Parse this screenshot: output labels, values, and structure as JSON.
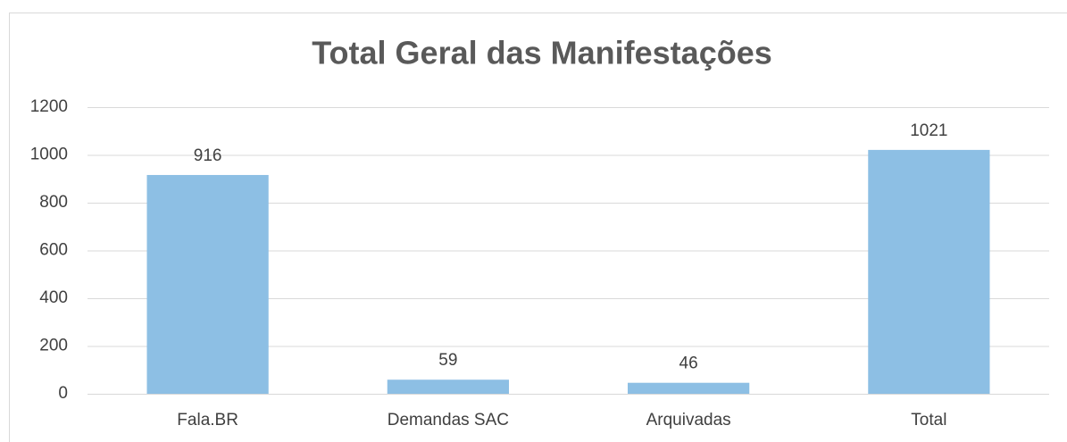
{
  "chart_data": {
    "type": "bar",
    "title": "Total Geral das Manifestações",
    "categories": [
      "Fala.BR",
      "Demandas SAC",
      "Arquivadas",
      "Total"
    ],
    "values": [
      916,
      59,
      46,
      1021
    ],
    "color": "#8dbfe4",
    "ylim": [
      0,
      1200
    ],
    "yticks": [
      0,
      200,
      400,
      600,
      800,
      1000,
      1200
    ],
    "grid": true
  }
}
